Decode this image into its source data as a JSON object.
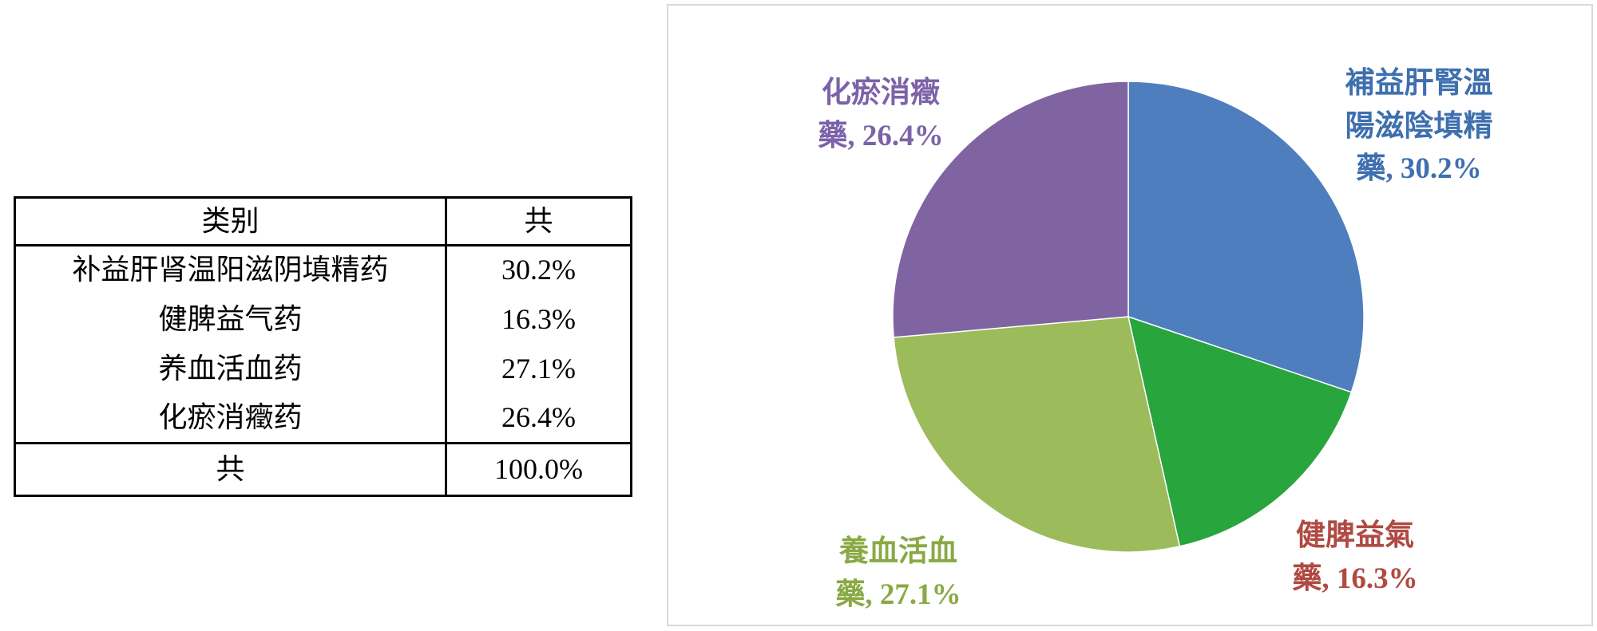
{
  "table": {
    "headers": {
      "category": "类别",
      "total": "共"
    },
    "rows": [
      {
        "label": "补益肝肾温阳滋阴填精药",
        "value": "30.2%"
      },
      {
        "label": "健脾益气药",
        "value": "16.3%"
      },
      {
        "label": "养血活血药",
        "value": "27.1%"
      },
      {
        "label": "化瘀消癥药",
        "value": "26.4%"
      }
    ],
    "total_row": {
      "label": "共",
      "value": "100.0%"
    }
  },
  "chart_data": {
    "type": "pie",
    "title": "",
    "labels": [
      "補益肝腎溫陽滋陰填精藥",
      "健脾益氣藥",
      "養血活血藥",
      "化瘀消癥藥"
    ],
    "values": [
      30.2,
      16.3,
      27.1,
      26.4
    ],
    "units": "%",
    "start_angle": "top",
    "direction": "clockwise",
    "legend": "none",
    "slice_colors": [
      "#4e7ebe",
      "#28a53c",
      "#9cbb5a",
      "#8064a2"
    ],
    "label_colors": [
      "#3e6faf",
      "#b04a42",
      "#89a944",
      "#7c62a8"
    ],
    "panel_border_color": "#d9d9d9",
    "label_lines": [
      [
        "補益肝腎溫",
        "陽滋陰填精",
        "藥, 30.2%"
      ],
      [
        "健脾益氣",
        "藥, 16.3%"
      ],
      [
        "養血活血",
        "藥, 27.1%"
      ],
      [
        "化瘀消癥",
        "藥, 26.4%"
      ]
    ]
  }
}
